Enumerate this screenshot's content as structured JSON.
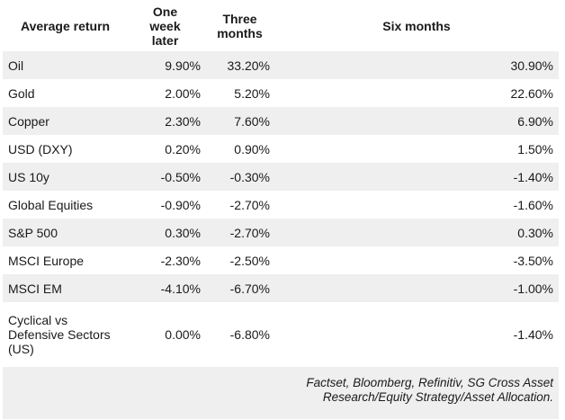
{
  "colors": {
    "background": "#ffffff",
    "stripe": "#efefef",
    "text": "#1a1a1a"
  },
  "table": {
    "headers": {
      "average_return": "Average return",
      "one_week": "One\nweek\nlater",
      "three_months": "Three\nmonths",
      "six_months": "Six months"
    },
    "rows": [
      {
        "label": "Oil",
        "one_week": "9.90%",
        "three_months": "33.20%",
        "six_months": "30.90%"
      },
      {
        "label": "Gold",
        "one_week": "2.00%",
        "three_months": "5.20%",
        "six_months": "22.60%"
      },
      {
        "label": "Copper",
        "one_week": "2.30%",
        "three_months": "7.60%",
        "six_months": "6.90%"
      },
      {
        "label": "USD (DXY)",
        "one_week": "0.20%",
        "three_months": "0.90%",
        "six_months": "1.50%"
      },
      {
        "label": "US 10y",
        "one_week": "-0.50%",
        "three_months": "-0.30%",
        "six_months": "-1.40%"
      },
      {
        "label": "Global Equities",
        "one_week": "-0.90%",
        "three_months": "-2.70%",
        "six_months": "-1.60%"
      },
      {
        "label": "S&P 500",
        "one_week": "0.30%",
        "three_months": "-2.70%",
        "six_months": "0.30%"
      },
      {
        "label": "MSCI Europe",
        "one_week": "-2.30%",
        "three_months": "-2.50%",
        "six_months": "-3.50%"
      },
      {
        "label": "MSCI EM",
        "one_week": "-4.10%",
        "three_months": "-6.70%",
        "six_months": "-1.00%"
      },
      {
        "label": "Cyclical vs Defensive Sectors (US)",
        "one_week": "0.00%",
        "three_months": "-6.80%",
        "six_months": "-1.40%"
      }
    ],
    "source": "Factset, Bloomberg, Refinitiv, SG Cross Asset Research/Equity Strategy/Asset Allocation."
  },
  "chart_data": {
    "type": "table",
    "columns": [
      "Average return",
      "One week later",
      "Three months",
      "Six months"
    ],
    "rows": [
      [
        "Oil",
        "9.90%",
        "33.20%",
        "30.90%"
      ],
      [
        "Gold",
        "2.00%",
        "5.20%",
        "22.60%"
      ],
      [
        "Copper",
        "2.30%",
        "7.60%",
        "6.90%"
      ],
      [
        "USD (DXY)",
        "0.20%",
        "0.90%",
        "1.50%"
      ],
      [
        "US 10y",
        "-0.50%",
        "-0.30%",
        "-1.40%"
      ],
      [
        "Global Equities",
        "-0.90%",
        "-2.70%",
        "-1.60%"
      ],
      [
        "S&P 500",
        "0.30%",
        "-2.70%",
        "0.30%"
      ],
      [
        "MSCI Europe",
        "-2.30%",
        "-2.50%",
        "-3.50%"
      ],
      [
        "MSCI EM",
        "-4.10%",
        "-6.70%",
        "-1.00%"
      ],
      [
        "Cyclical vs Defensive Sectors (US)",
        "0.00%",
        "-6.80%",
        "-1.40%"
      ]
    ],
    "layout_hints": {
      "striped_rows": true,
      "value_alignment": "right",
      "header_alignment": "center",
      "source_position": "bottom-right-italic"
    },
    "source": "Factset, Bloomberg, Refinitiv, SG Cross Asset Research/Equity Strategy/Asset Allocation."
  }
}
